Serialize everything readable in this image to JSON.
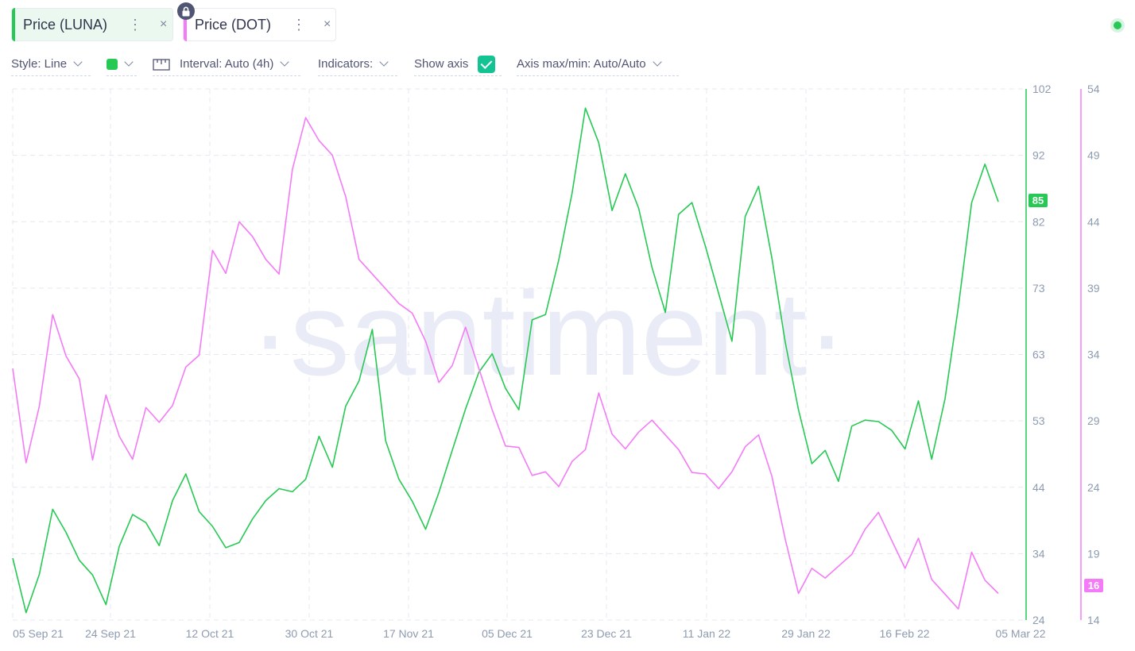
{
  "tabs": [
    {
      "label": "Price (LUNA)",
      "dots": "⋮",
      "close": "×",
      "color": "#26c953"
    },
    {
      "label": "Price (DOT)",
      "dots": "⋮",
      "close": "×",
      "color": "#f47bf7"
    }
  ],
  "controls": {
    "style_label": "Style: Line",
    "swatch_color": "#26c953",
    "interval_label": "Interval: Auto (4h)",
    "indicators_label": "Indicators:",
    "show_axis_label": "Show axis",
    "show_axis_checked": true,
    "axis_maxmin_label": "Axis max/min: Auto/Auto"
  },
  "watermark": "·santiment·",
  "chart_data": {
    "type": "line",
    "x_ticks": [
      "05 Sep 21",
      "24 Sep 21",
      "12 Oct 21",
      "30 Oct 21",
      "17 Nov 21",
      "05 Dec 21",
      "23 Dec 21",
      "11 Jan 22",
      "29 Jan 22",
      "16 Feb 22",
      "05 Mar 22"
    ],
    "grid": true,
    "series": [
      {
        "name": "Price (LUNA)",
        "color": "#26c953",
        "axis": "left",
        "ylim": [
          24,
          102
        ],
        "ticks": [
          "102",
          "92",
          "82",
          "73",
          "63",
          "53",
          "44",
          "34",
          "24"
        ],
        "last_value": "85",
        "values": [
          33,
          25,
          31,
          41,
          37,
          33,
          31,
          26,
          35,
          40,
          39,
          35,
          42,
          46,
          40,
          38,
          35,
          36,
          39,
          42,
          44,
          43,
          45,
          51,
          47,
          55,
          59,
          67,
          50,
          45,
          42,
          38,
          43,
          49,
          55,
          60,
          63,
          58,
          55,
          68,
          69,
          77,
          86,
          99,
          94,
          84,
          89,
          84,
          76,
          69,
          83,
          85,
          79,
          72,
          65,
          83,
          87,
          77,
          65,
          55,
          47,
          49,
          45,
          52,
          53,
          53,
          52,
          49,
          56,
          48,
          56,
          70,
          85,
          91,
          85
        ]
      },
      {
        "name": "Price (DOT)",
        "color": "#f47bf7",
        "axis": "right",
        "ylim": [
          14,
          54
        ],
        "ticks": [
          "54",
          "49",
          "44",
          "39",
          "34",
          "29",
          "24",
          "19",
          "16",
          "14"
        ],
        "last_value": "16",
        "values": [
          33,
          26,
          30,
          37,
          34,
          32,
          26,
          31,
          28,
          26,
          30,
          29,
          30,
          33,
          34,
          42,
          40,
          44,
          43,
          41,
          40,
          48,
          52,
          50,
          49,
          46,
          41,
          40,
          39,
          38,
          37,
          35,
          32,
          33,
          36,
          33,
          30,
          27,
          27,
          25,
          25,
          24,
          26,
          27,
          31,
          28,
          27,
          28,
          29,
          28,
          27,
          25,
          25,
          24,
          25,
          27,
          28,
          25,
          20,
          16,
          18,
          17,
          18,
          19,
          21,
          22,
          20,
          18,
          20,
          17,
          16,
          15,
          19,
          17,
          16
        ]
      }
    ]
  }
}
